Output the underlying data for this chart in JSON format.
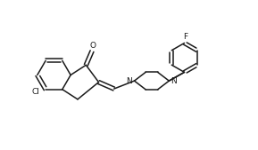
{
  "bg_color": "#ffffff",
  "line_color": "#1a1a1a",
  "line_width": 1.1,
  "font_size": 6.5,
  "xlim": [
    -0.5,
    7.2
  ],
  "ylim": [
    0.0,
    2.6
  ],
  "figsize": [
    2.89,
    1.69
  ],
  "dpi": 100
}
